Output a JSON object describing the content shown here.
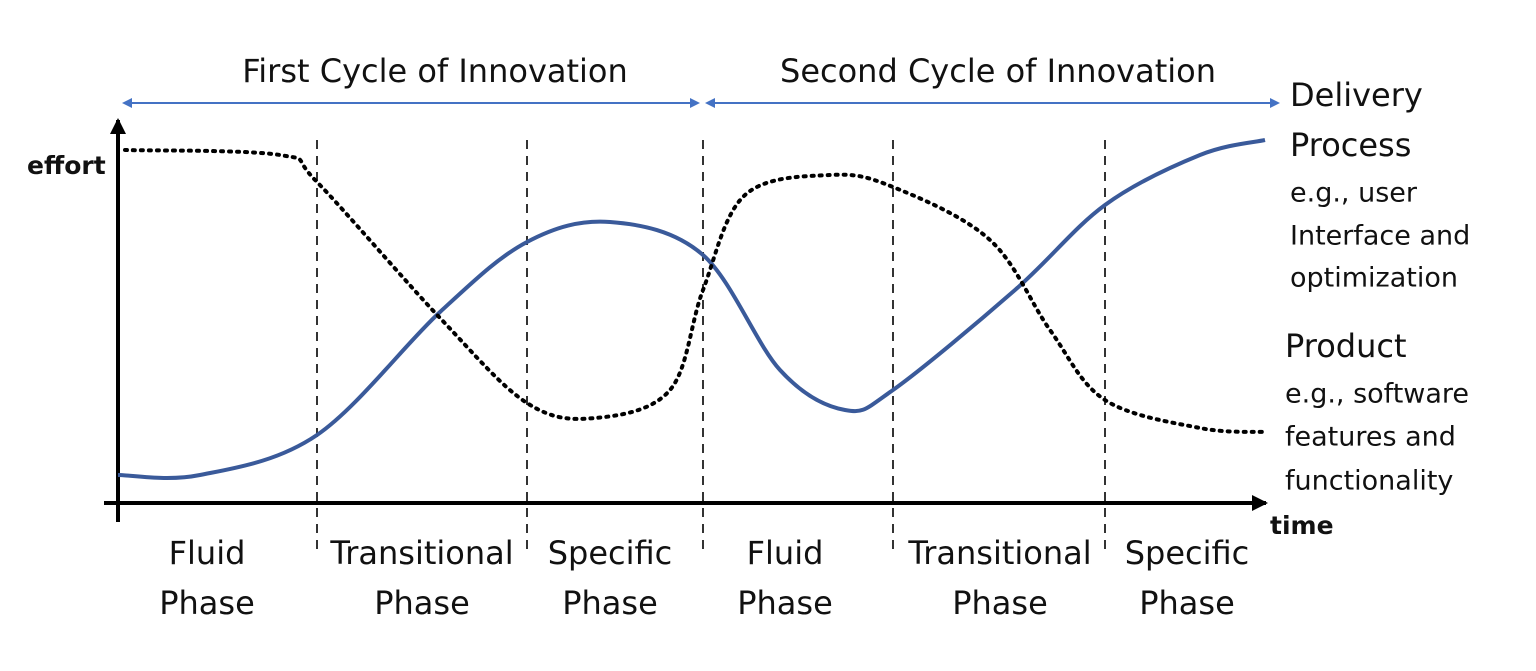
{
  "cycles": [
    "First Cycle of Innovation",
    "Second Cycle of Innovation"
  ],
  "axes": {
    "y": "effort",
    "x": "time"
  },
  "phases": [
    {
      "line1": "Fluid",
      "line2": "Phase"
    },
    {
      "line1": "Transitional",
      "line2": "Phase"
    },
    {
      "line1": "Specific",
      "line2": "Phase"
    },
    {
      "line1": "Fluid",
      "line2": "Phase"
    },
    {
      "line1": "Transitional",
      "line2": "Phase"
    },
    {
      "line1": "Specific",
      "line2": "Phase"
    }
  ],
  "legend": [
    {
      "title": [
        "Delivery",
        "Process"
      ],
      "examples": [
        "e.g., user",
        "Interface and",
        "optimization"
      ]
    },
    {
      "title": [
        "Product"
      ],
      "examples": [
        "e.g., software",
        "features and",
        "functionality"
      ]
    }
  ]
}
